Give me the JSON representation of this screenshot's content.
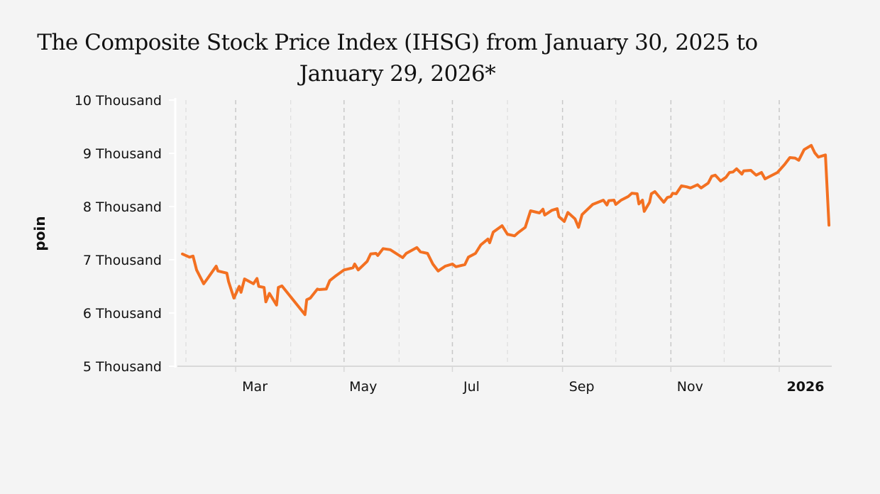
{
  "chart_data": {
    "type": "line",
    "title_line1": "The Composite Stock Price Index (IHSG) from January 30, 2025 to",
    "title_line2": "January 29, 2026*",
    "xlabel": "",
    "ylabel": "poin",
    "ylim": [
      5000,
      10000
    ],
    "xlim": [
      "2025-01-30",
      "2026-01-29"
    ],
    "yticks": [
      {
        "value": 5000,
        "label": "5 Thousand"
      },
      {
        "value": 6000,
        "label": "6 Thousand"
      },
      {
        "value": 7000,
        "label": "7 Thousand"
      },
      {
        "value": 8000,
        "label": "8 Thousand"
      },
      {
        "value": 9000,
        "label": "9 Thousand"
      },
      {
        "value": 10000,
        "label": "10 Thousand"
      }
    ],
    "xticks": [
      {
        "date": "2025-03-01",
        "label": "Mar",
        "bold": false
      },
      {
        "date": "2025-05-01",
        "label": "May",
        "bold": false
      },
      {
        "date": "2025-07-01",
        "label": "Jul",
        "bold": false
      },
      {
        "date": "2025-09-01",
        "label": "Sep",
        "bold": false
      },
      {
        "date": "2025-11-01",
        "label": "Nov",
        "bold": false
      },
      {
        "date": "2026-01-01",
        "label": "2026",
        "bold": true
      }
    ],
    "grid_dates": [
      "2025-02-01",
      "2025-03-01",
      "2025-04-01",
      "2025-05-01",
      "2025-06-01",
      "2025-07-01",
      "2025-08-01",
      "2025-09-01",
      "2025-10-01",
      "2025-11-01",
      "2025-12-01",
      "2026-01-01"
    ],
    "grid": true,
    "series": [
      {
        "name": "IHSG",
        "color": "#f37021",
        "points": [
          [
            "2025-01-30",
            7110
          ],
          [
            "2025-02-03",
            7050
          ],
          [
            "2025-02-05",
            7070
          ],
          [
            "2025-02-07",
            6810
          ],
          [
            "2025-02-11",
            6550
          ],
          [
            "2025-02-13",
            6640
          ],
          [
            "2025-02-18",
            6880
          ],
          [
            "2025-02-19",
            6790
          ],
          [
            "2025-02-24",
            6750
          ],
          [
            "2025-02-25",
            6590
          ],
          [
            "2025-02-28",
            6280
          ],
          [
            "2025-03-03",
            6500
          ],
          [
            "2025-03-04",
            6390
          ],
          [
            "2025-03-06",
            6640
          ],
          [
            "2025-03-11",
            6550
          ],
          [
            "2025-03-13",
            6650
          ],
          [
            "2025-03-14",
            6500
          ],
          [
            "2025-03-17",
            6480
          ],
          [
            "2025-03-18",
            6210
          ],
          [
            "2025-03-20",
            6370
          ],
          [
            "2025-03-24",
            6150
          ],
          [
            "2025-03-25",
            6480
          ],
          [
            "2025-03-27",
            6510
          ],
          [
            "2025-04-09",
            5970
          ],
          [
            "2025-04-10",
            6250
          ],
          [
            "2025-04-12",
            6280
          ],
          [
            "2025-04-16",
            6450
          ],
          [
            "2025-04-17",
            6440
          ],
          [
            "2025-04-21",
            6450
          ],
          [
            "2025-04-23",
            6610
          ],
          [
            "2025-04-26",
            6690
          ],
          [
            "2025-05-01",
            6810
          ],
          [
            "2025-05-06",
            6850
          ],
          [
            "2025-05-07",
            6920
          ],
          [
            "2025-05-09",
            6810
          ],
          [
            "2025-05-14",
            6970
          ],
          [
            "2025-05-16",
            7110
          ],
          [
            "2025-05-19",
            7120
          ],
          [
            "2025-05-20",
            7080
          ],
          [
            "2025-05-23",
            7210
          ],
          [
            "2025-05-27",
            7190
          ],
          [
            "2025-06-03",
            7040
          ],
          [
            "2025-06-05",
            7120
          ],
          [
            "2025-06-11",
            7230
          ],
          [
            "2025-06-13",
            7150
          ],
          [
            "2025-06-17",
            7120
          ],
          [
            "2025-06-20",
            6920
          ],
          [
            "2025-06-23",
            6790
          ],
          [
            "2025-06-27",
            6880
          ],
          [
            "2025-07-01",
            6920
          ],
          [
            "2025-07-03",
            6870
          ],
          [
            "2025-07-08",
            6910
          ],
          [
            "2025-07-10",
            7050
          ],
          [
            "2025-07-14",
            7120
          ],
          [
            "2025-07-17",
            7280
          ],
          [
            "2025-07-21",
            7390
          ],
          [
            "2025-07-22",
            7320
          ],
          [
            "2025-07-24",
            7520
          ],
          [
            "2025-07-29",
            7640
          ],
          [
            "2025-08-01",
            7480
          ],
          [
            "2025-08-05",
            7450
          ],
          [
            "2025-08-07",
            7510
          ],
          [
            "2025-08-11",
            7610
          ],
          [
            "2025-08-14",
            7920
          ],
          [
            "2025-08-19",
            7880
          ],
          [
            "2025-08-21",
            7950
          ],
          [
            "2025-08-22",
            7840
          ],
          [
            "2025-08-26",
            7930
          ],
          [
            "2025-08-29",
            7960
          ],
          [
            "2025-08-30",
            7810
          ],
          [
            "2025-09-02",
            7720
          ],
          [
            "2025-09-04",
            7890
          ],
          [
            "2025-09-08",
            7770
          ],
          [
            "2025-09-10",
            7610
          ],
          [
            "2025-09-12",
            7850
          ],
          [
            "2025-09-18",
            8040
          ],
          [
            "2025-09-24",
            8120
          ],
          [
            "2025-09-26",
            8030
          ],
          [
            "2025-09-27",
            8110
          ],
          [
            "2025-09-30",
            8120
          ],
          [
            "2025-10-01",
            8040
          ],
          [
            "2025-10-04",
            8120
          ],
          [
            "2025-10-08",
            8190
          ],
          [
            "2025-10-10",
            8250
          ],
          [
            "2025-10-13",
            8240
          ],
          [
            "2025-10-14",
            8050
          ],
          [
            "2025-10-16",
            8120
          ],
          [
            "2025-10-17",
            7910
          ],
          [
            "2025-10-20",
            8080
          ],
          [
            "2025-10-21",
            8240
          ],
          [
            "2025-10-23",
            8280
          ],
          [
            "2025-10-28",
            8080
          ],
          [
            "2025-10-30",
            8170
          ],
          [
            "2025-11-01",
            8190
          ],
          [
            "2025-11-02",
            8250
          ],
          [
            "2025-11-04",
            8240
          ],
          [
            "2025-11-07",
            8390
          ],
          [
            "2025-11-10",
            8370
          ],
          [
            "2025-11-12",
            8350
          ],
          [
            "2025-11-16",
            8410
          ],
          [
            "2025-11-18",
            8350
          ],
          [
            "2025-11-22",
            8440
          ],
          [
            "2025-11-24",
            8570
          ],
          [
            "2025-11-26",
            8590
          ],
          [
            "2025-11-29",
            8480
          ],
          [
            "2025-12-02",
            8550
          ],
          [
            "2025-12-04",
            8640
          ],
          [
            "2025-12-06",
            8650
          ],
          [
            "2025-12-08",
            8710
          ],
          [
            "2025-12-11",
            8610
          ],
          [
            "2025-12-12",
            8670
          ],
          [
            "2025-12-16",
            8680
          ],
          [
            "2025-12-17",
            8650
          ],
          [
            "2025-12-19",
            8590
          ],
          [
            "2025-12-22",
            8640
          ],
          [
            "2025-12-24",
            8520
          ],
          [
            "2025-12-31",
            8640
          ],
          [
            "2026-01-04",
            8790
          ],
          [
            "2026-01-07",
            8920
          ],
          [
            "2026-01-10",
            8910
          ],
          [
            "2026-01-12",
            8870
          ],
          [
            "2026-01-15",
            9070
          ],
          [
            "2026-01-19",
            9150
          ],
          [
            "2026-01-21",
            9010
          ],
          [
            "2026-01-23",
            8930
          ],
          [
            "2026-01-27",
            8970
          ],
          [
            "2026-01-29",
            7650
          ]
        ]
      }
    ]
  }
}
